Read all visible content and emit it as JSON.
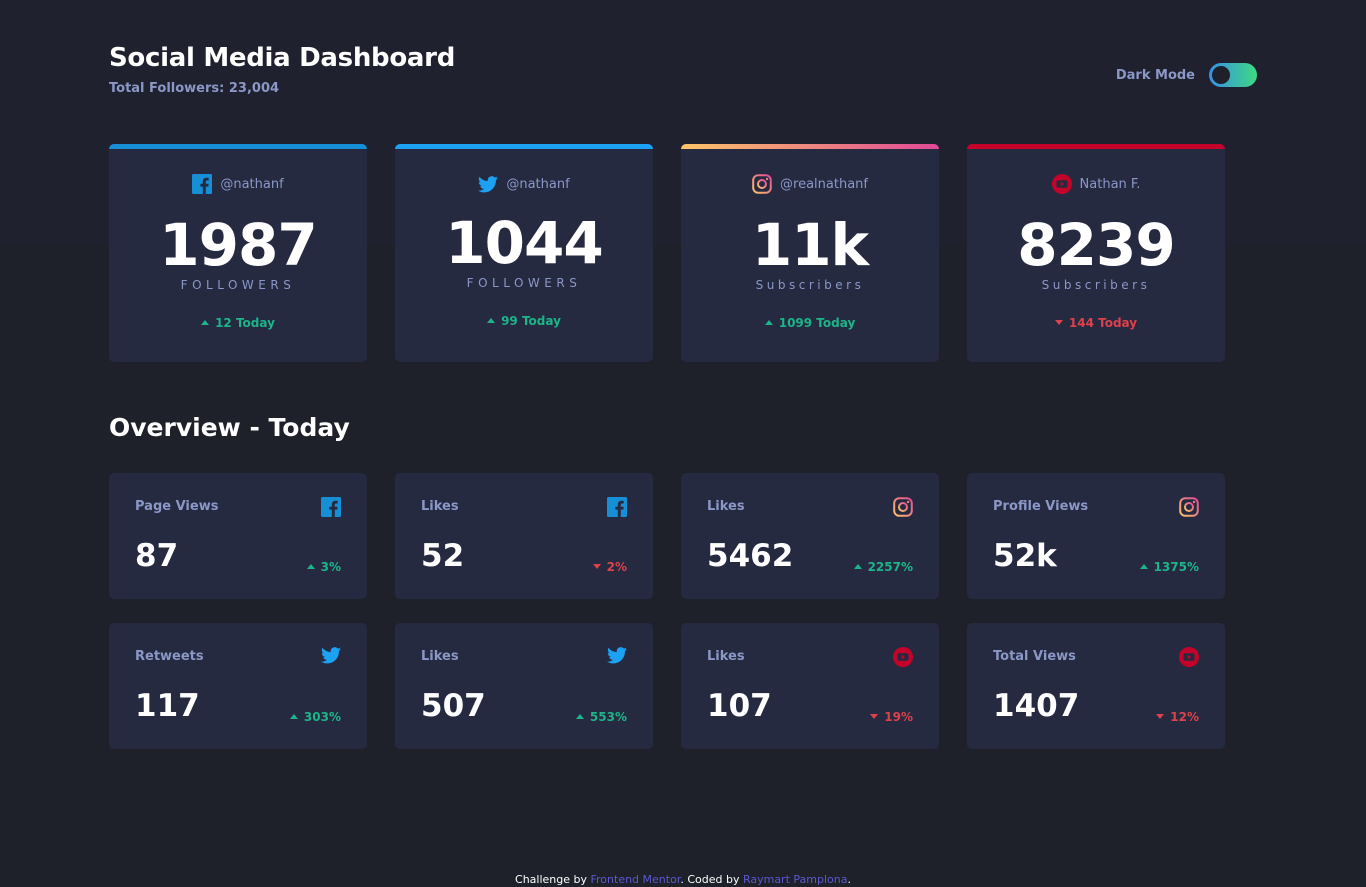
{
  "header": {
    "title": "Social Media Dashboard",
    "total_followers": "Total Followers: 23,004",
    "dark_mode_label": "Dark Mode"
  },
  "colors": {
    "facebook": "#178fd7",
    "twitter": "#1da1f2",
    "instagram_start": "#fdc468",
    "instagram_end": "#df4996",
    "youtube": "#c4032a",
    "up": "#1db489",
    "down": "#dc414c"
  },
  "followers": [
    {
      "platform": "facebook",
      "icon": "facebook-icon",
      "handle": "@nathanf",
      "count": "1987",
      "label": "FOLLOWERS",
      "today": "12 Today",
      "direction": "up"
    },
    {
      "platform": "twitter",
      "icon": "twitter-icon",
      "handle": "@nathanf",
      "count": "1044",
      "label": "FOLLOWERS",
      "today": "99 Today",
      "direction": "up"
    },
    {
      "platform": "instagram",
      "icon": "instagram-icon",
      "handle": "@realnathanf",
      "count": "11k",
      "label": "Subscribers",
      "today": "1099 Today",
      "direction": "up"
    },
    {
      "platform": "youtube",
      "icon": "youtube-icon",
      "handle": "Nathan F.",
      "count": "8239",
      "label": "Subscribers",
      "today": "144 Today",
      "direction": "down"
    }
  ],
  "overview": {
    "title": "Overview - Today",
    "cards": [
      {
        "metric": "Page Views",
        "platform": "facebook",
        "value": "87",
        "change": "3%",
        "direction": "up"
      },
      {
        "metric": "Likes",
        "platform": "facebook",
        "value": "52",
        "change": "2%",
        "direction": "down"
      },
      {
        "metric": "Likes",
        "platform": "instagram",
        "value": "5462",
        "change": "2257%",
        "direction": "up"
      },
      {
        "metric": "Profile Views",
        "platform": "instagram",
        "value": "52k",
        "change": "1375%",
        "direction": "up"
      },
      {
        "metric": "Retweets",
        "platform": "twitter",
        "value": "117",
        "change": "303%",
        "direction": "up"
      },
      {
        "metric": "Likes",
        "platform": "twitter",
        "value": "507",
        "change": "553%",
        "direction": "up"
      },
      {
        "metric": "Likes",
        "platform": "youtube",
        "value": "107",
        "change": "19%",
        "direction": "down"
      },
      {
        "metric": "Total Views",
        "platform": "youtube",
        "value": "1407",
        "change": "12%",
        "direction": "down"
      }
    ]
  },
  "footer": {
    "prefix": "Challenge by ",
    "link1": "Frontend Mentor",
    "middle": ". Coded by ",
    "link2": "Raymart Pamplona",
    "suffix": "."
  }
}
